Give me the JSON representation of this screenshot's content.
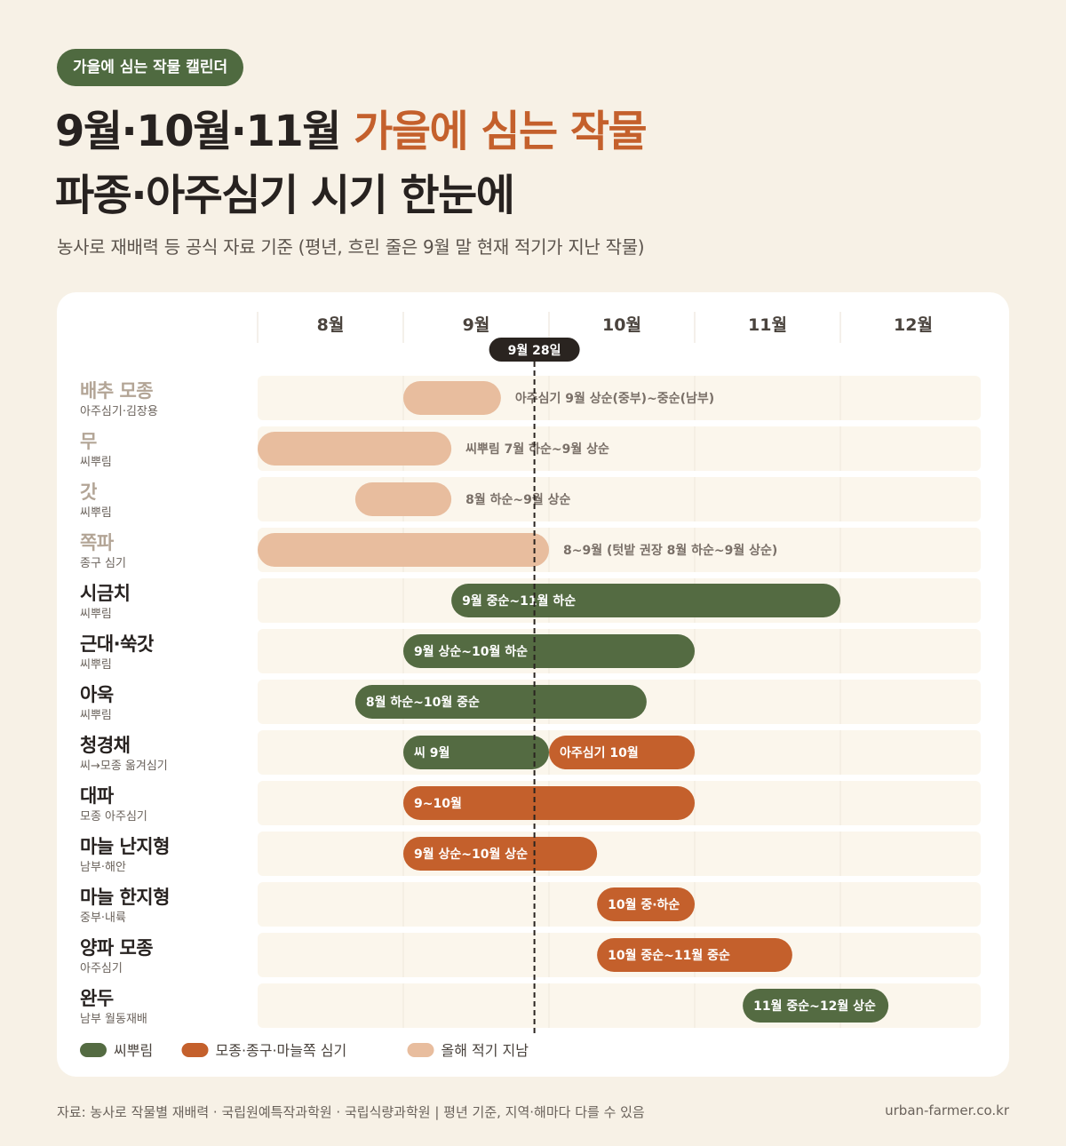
{
  "badge": "가을에 심는 작물 캘린더",
  "title": {
    "line1_a": "9월·10월·11월 ",
    "line1_b": "가을에 심는 작물",
    "line2": "파종·아주심기 시기 한눈에"
  },
  "subtitle": "농사로 재배력 등 공식 자료 기준 (평년, 흐린 줄은 9월 말 현재 적기가 지난 작물)",
  "colors": {
    "sowing": "#546b42",
    "planting": "#c4602c",
    "passed": "#e8bd9e",
    "row_bg": "#fbf6ec",
    "grid": "#e8e1d6",
    "today_badge": "#2a2420"
  },
  "chart_data": {
    "type": "gantt",
    "months": [
      "8월",
      "9월",
      "10월",
      "11월",
      "12월"
    ],
    "x_unit": "month (10 = 10월 초)",
    "xlim": [
      8,
      13
    ],
    "today": {
      "label": "9월 28일",
      "value": 9.9
    },
    "legend": [
      {
        "key": "sowing",
        "label": "씨뿌림"
      },
      {
        "key": "planting",
        "label": "모종·종구·마늘쪽 심기"
      },
      {
        "key": "passed",
        "label": "올해 적기 지남"
      }
    ],
    "crops": [
      {
        "name": "배추 모종",
        "sub": "아주심기·김장용",
        "faded": true,
        "bars": [
          {
            "start": 9.0,
            "end": 9.67,
            "type": "passed",
            "label": "아주심기 9월 상순(중부)~중순(남부)",
            "label_outside": true
          }
        ]
      },
      {
        "name": "무",
        "sub": "씨뿌림",
        "faded": true,
        "bars": [
          {
            "start": 8.0,
            "end": 9.33,
            "type": "passed",
            "label": "씨뿌림 7월 하순~9월 상순",
            "label_outside": true
          }
        ]
      },
      {
        "name": "갓",
        "sub": "씨뿌림",
        "faded": true,
        "bars": [
          {
            "start": 8.67,
            "end": 9.33,
            "type": "passed",
            "label": "8월 하순~9월 상순",
            "label_outside": true
          }
        ]
      },
      {
        "name": "쪽파",
        "sub": "종구 심기",
        "faded": true,
        "bars": [
          {
            "start": 8.0,
            "end": 10.0,
            "type": "passed",
            "label": "8~9월 (텃밭 권장 8월 하순~9월 상순)",
            "label_outside": true
          }
        ]
      },
      {
        "name": "시금치",
        "sub": "씨뿌림",
        "faded": false,
        "bars": [
          {
            "start": 9.33,
            "end": 12.0,
            "type": "sowing",
            "label": "9월 중순~11월 하순"
          }
        ]
      },
      {
        "name": "근대·쑥갓",
        "sub": "씨뿌림",
        "faded": false,
        "bars": [
          {
            "start": 9.0,
            "end": 11.0,
            "type": "sowing",
            "label": "9월 상순~10월 하순"
          }
        ]
      },
      {
        "name": "아욱",
        "sub": "씨뿌림",
        "faded": false,
        "bars": [
          {
            "start": 8.67,
            "end": 10.67,
            "type": "sowing",
            "label": "8월 하순~10월 중순"
          }
        ]
      },
      {
        "name": "청경채",
        "sub": "씨→모종 옮겨심기",
        "faded": false,
        "bars": [
          {
            "start": 9.0,
            "end": 10.0,
            "type": "sowing",
            "label": "씨 9월"
          },
          {
            "start": 10.0,
            "end": 11.0,
            "type": "planting",
            "label": "아주심기 10월"
          }
        ]
      },
      {
        "name": "대파",
        "sub": "모종 아주심기",
        "faded": false,
        "bars": [
          {
            "start": 9.0,
            "end": 11.0,
            "type": "planting",
            "label": "9~10월"
          }
        ]
      },
      {
        "name": "마늘 난지형",
        "sub": "남부·해안",
        "faded": false,
        "bars": [
          {
            "start": 9.0,
            "end": 10.33,
            "type": "planting",
            "label": "9월 상순~10월 상순"
          }
        ]
      },
      {
        "name": "마늘 한지형",
        "sub": "중부·내륙",
        "faded": false,
        "bars": [
          {
            "start": 10.33,
            "end": 11.0,
            "type": "planting",
            "label": "10월 중·하순"
          }
        ]
      },
      {
        "name": "양파 모종",
        "sub": "아주심기",
        "faded": false,
        "bars": [
          {
            "start": 10.33,
            "end": 11.67,
            "type": "planting",
            "label": "10월 중순~11월 중순"
          }
        ]
      },
      {
        "name": "완두",
        "sub": "남부 월동재배",
        "faded": false,
        "bars": [
          {
            "start": 11.33,
            "end": 12.33,
            "type": "sowing",
            "label": "11월 중순~12월 상순"
          }
        ]
      }
    ]
  },
  "footer": {
    "source": "자료: 농사로 작물별 재배력 · 국립원예특작과학원 · 국립식량과학원 | 평년 기준, 지역·해마다 다를 수 있음",
    "site": "urban-farmer.co.kr"
  }
}
